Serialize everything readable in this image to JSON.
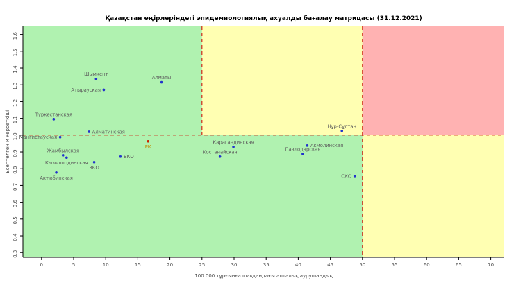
{
  "chart_data": {
    "type": "scatter",
    "title": "Қазақстан өңірлеріндегі эпидемиологиялық ахуалды бағалау матрицасы  (31.12.2021)",
    "xlabel": "100 000 тұрғынға шаққандағы апталық аурушаңдық",
    "ylabel": "Есептелген R көрсеткіші",
    "xlim": [
      -2.9,
      72.1
    ],
    "ylim": [
      0.272,
      1.648
    ],
    "xticks": [
      0,
      5,
      10,
      15,
      20,
      25,
      30,
      35,
      40,
      45,
      50,
      55,
      60,
      65,
      70
    ],
    "yticks": [
      0.3,
      0.4,
      0.5,
      0.6,
      0.7,
      0.8,
      0.9,
      1.0,
      1.1,
      1.2,
      1.3,
      1.4,
      1.5,
      1.6
    ],
    "grid": false,
    "legend": null,
    "zones": {
      "x_threshold_mid": 25,
      "x_threshold_high": 50,
      "y_threshold": 1.0,
      "colors": {
        "low": "#b0f2b0",
        "medium": "#ffffb2",
        "high": "#ffb2b2"
      }
    },
    "threshold_line_color": "#d02818",
    "default_point_color": "#2233cc",
    "label_color": "#5c5c5c",
    "points": [
      {
        "label": "Шымкент",
        "x": 8.5,
        "y": 1.335,
        "label_pos": "above"
      },
      {
        "label": "Алматы",
        "x": 18.7,
        "y": 1.315,
        "label_pos": "above"
      },
      {
        "label": "Атырауская",
        "x": 9.7,
        "y": 1.27,
        "label_pos": "left"
      },
      {
        "label": "Туркестанская",
        "x": 1.9,
        "y": 1.095,
        "label_pos": "above"
      },
      {
        "label": "Нұр-Сұлтан",
        "x": 46.8,
        "y": 1.025,
        "label_pos": "above"
      },
      {
        "label": "Алматинская",
        "x": 7.4,
        "y": 1.02,
        "label_pos": "right"
      },
      {
        "label": "Мангистауская",
        "x": 2.9,
        "y": 0.988,
        "label_pos": "left"
      },
      {
        "label": "РК",
        "x": 16.6,
        "y": 0.963,
        "label_pos": "below",
        "point_color": "#cc2200",
        "label_color": "#c08a00"
      },
      {
        "label": "Акмолинская",
        "x": 41.4,
        "y": 0.938,
        "label_pos": "right"
      },
      {
        "label": "Карагандинская",
        "x": 29.9,
        "y": 0.93,
        "label_pos": "above"
      },
      {
        "label": "Павлодарская",
        "x": 40.7,
        "y": 0.888,
        "label_pos": "above"
      },
      {
        "label": "Жамбылская",
        "x": 3.35,
        "y": 0.88,
        "label_pos": "above"
      },
      {
        "label": "Костанайская",
        "x": 27.8,
        "y": 0.872,
        "label_pos": "above"
      },
      {
        "label": "ВКО",
        "x": 12.3,
        "y": 0.872,
        "label_pos": "right"
      },
      {
        "label": "Кызылординская",
        "x": 3.9,
        "y": 0.866,
        "label_pos": "below"
      },
      {
        "label": "ЗКО",
        "x": 8.2,
        "y": 0.839,
        "label_pos": "below"
      },
      {
        "label": "Актюбинская",
        "x": 2.3,
        "y": 0.777,
        "label_pos": "below"
      },
      {
        "label": "СКО",
        "x": 48.8,
        "y": 0.756,
        "label_pos": "left"
      }
    ]
  }
}
